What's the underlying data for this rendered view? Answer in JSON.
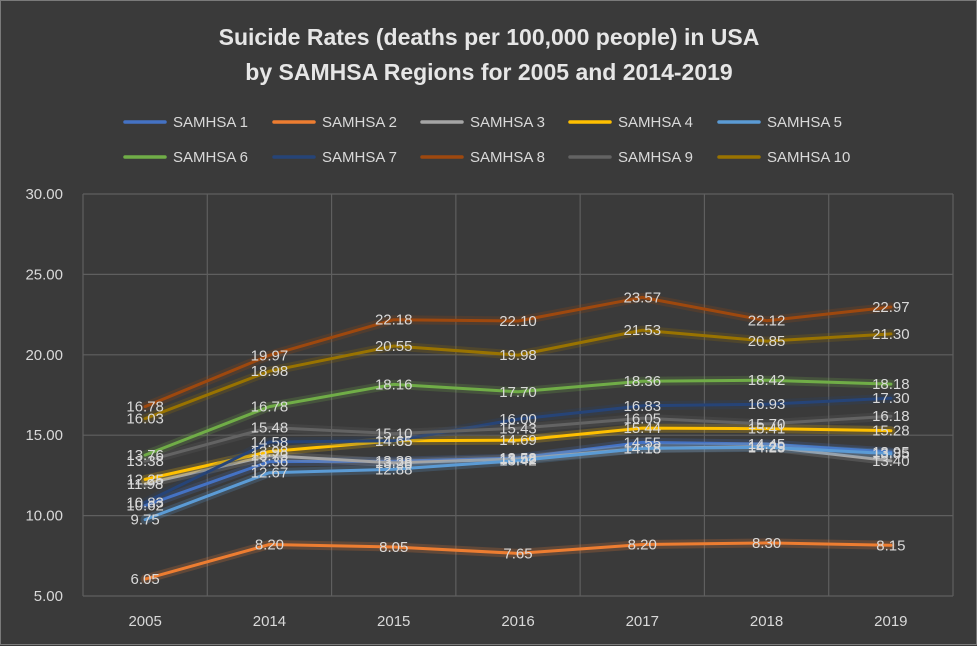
{
  "chart_data": {
    "type": "line",
    "title_line1": "Suicide Rates (deaths per 100,000 people) in USA",
    "title_line2": "by SAMHSA Regions for 2005 and 2014-2019",
    "categories": [
      "2005",
      "2014",
      "2015",
      "2016",
      "2017",
      "2018",
      "2019"
    ],
    "ylim": [
      5,
      30
    ],
    "yticks": [
      "5.00",
      "10.00",
      "15.00",
      "20.00",
      "25.00",
      "30.00"
    ],
    "grid": true,
    "legend_position": "top",
    "series": [
      {
        "name": "SAMHSA 1",
        "color": "#4472c4",
        "values": [
          10.62,
          13.36,
          13.38,
          13.58,
          14.55,
          14.45,
          13.95
        ]
      },
      {
        "name": "SAMHSA 2",
        "color": "#ed7d31",
        "values": [
          6.05,
          8.2,
          8.05,
          7.65,
          8.2,
          8.3,
          8.15
        ]
      },
      {
        "name": "SAMHSA 3",
        "color": "#a5a5a5",
        "values": [
          11.98,
          13.73,
          13.28,
          13.52,
          14.18,
          14.29,
          13.4
        ]
      },
      {
        "name": "SAMHSA 4",
        "color": "#ffc000",
        "values": [
          12.25,
          13.98,
          14.65,
          14.69,
          15.44,
          15.41,
          15.28
        ]
      },
      {
        "name": "SAMHSA 5",
        "color": "#5b9bd5",
        "values": [
          9.75,
          12.67,
          12.88,
          13.42,
          14.18,
          14.25,
          13.85
        ]
      },
      {
        "name": "SAMHSA 6",
        "color": "#70ad47",
        "values": [
          13.76,
          16.78,
          18.16,
          17.7,
          18.36,
          18.42,
          18.18
        ]
      },
      {
        "name": "SAMHSA 7",
        "color": "#264478",
        "values": [
          10.83,
          14.58,
          14.65,
          16.0,
          16.83,
          16.93,
          17.3
        ]
      },
      {
        "name": "SAMHSA 8",
        "color": "#9e480e",
        "values": [
          16.78,
          19.97,
          22.18,
          22.1,
          23.57,
          22.12,
          22.97
        ]
      },
      {
        "name": "SAMHSA 9",
        "color": "#636363",
        "values": [
          13.38,
          15.48,
          15.1,
          15.43,
          16.05,
          15.7,
          16.18
        ]
      },
      {
        "name": "SAMHSA 10",
        "color": "#997300",
        "values": [
          16.03,
          18.98,
          20.55,
          19.98,
          21.53,
          20.85,
          21.3
        ]
      }
    ]
  }
}
